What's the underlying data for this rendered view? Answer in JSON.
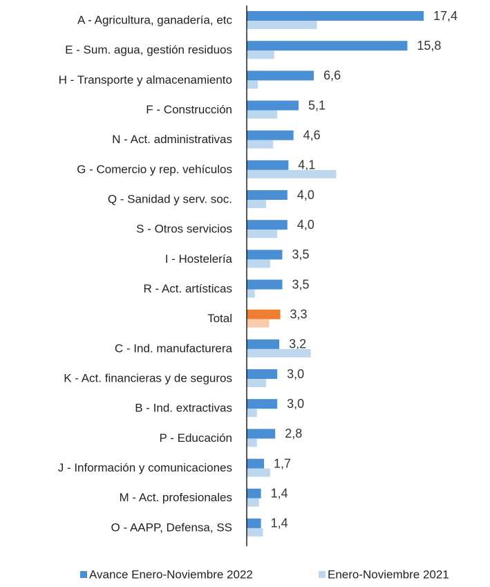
{
  "chart_data": {
    "type": "hbar",
    "categories": [
      "A - Agricultura, ganadería, etc",
      "E - Sum. agua, gestión residuos",
      "H - Transporte y almacenamiento",
      "F - Construcción",
      "N - Act. administrativas",
      "G - Comercio y rep. vehículos",
      "Q - Sanidad y serv. soc.",
      "S - Otros servicios",
      "I - Hostelería",
      "R - Act. artísticas",
      "Total",
      "C - Ind. manufacturera",
      "K - Act. financieras y de seguros",
      "B - Ind. extractivas",
      "P - Educación",
      "J - Información y comunicaciones",
      "M - Act. profesionales",
      "O - AAPP, Defensa, SS"
    ],
    "series": [
      {
        "name": "Avance Enero-Noviembre 2022",
        "color": "#4a8fd4",
        "highlight": {
          "category": "Total",
          "color": "#ed7d31"
        },
        "values": [
          17.4,
          15.8,
          6.6,
          5.1,
          4.6,
          4.1,
          4.0,
          4.0,
          3.5,
          3.5,
          3.3,
          3.2,
          3.0,
          3.0,
          2.8,
          1.7,
          1.4,
          1.4
        ],
        "value_labels": [
          "17,4",
          "15,8",
          "6,6",
          "5,1",
          "4,6",
          "4,1",
          "4,0",
          "4,0",
          "3,5",
          "3,5",
          "3,3",
          "3,2",
          "3,0",
          "3,0",
          "2,8",
          "1,7",
          "1,4",
          "1,4"
        ]
      },
      {
        "name": "Enero-Noviembre 2021",
        "color": "#bdd7ee",
        "highlight": {
          "category": "Total",
          "color": "#f8cbad"
        },
        "values": [
          6.9,
          2.7,
          1.1,
          3.0,
          2.6,
          8.8,
          1.9,
          3.0,
          2.3,
          0.8,
          2.2,
          6.3,
          1.9,
          1.0,
          1.0,
          2.3,
          1.2,
          1.6
        ]
      }
    ],
    "xlim": [
      0,
      20
    ]
  }
}
